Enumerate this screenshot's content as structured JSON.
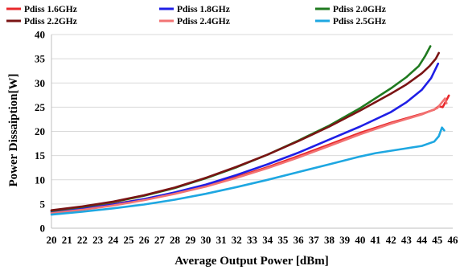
{
  "chart_data": {
    "type": "line",
    "title": "",
    "xlabel": "Average Output Power [dBm]",
    "ylabel": "Power Dissaiption[W]",
    "xlim": [
      20,
      46
    ],
    "ylim": [
      0,
      40
    ],
    "x_ticks": [
      20,
      21,
      22,
      23,
      24,
      25,
      26,
      27,
      28,
      29,
      30,
      31,
      32,
      33,
      34,
      35,
      36,
      37,
      38,
      39,
      40,
      41,
      42,
      43,
      44,
      45,
      46
    ],
    "y_ticks": [
      0,
      5,
      10,
      15,
      20,
      25,
      30,
      35,
      40
    ],
    "grid": "horizontal",
    "legend_position": "top",
    "series": [
      {
        "name": "Pdiss 1.6GHz",
        "color": "#e8282b",
        "points": [
          [
            20,
            3.5
          ],
          [
            22,
            4.2
          ],
          [
            24,
            5.0
          ],
          [
            26,
            6.0
          ],
          [
            28,
            7.3
          ],
          [
            30,
            8.8
          ],
          [
            32,
            10.6
          ],
          [
            34,
            12.6
          ],
          [
            36,
            14.9
          ],
          [
            38,
            17.3
          ],
          [
            40,
            19.7
          ],
          [
            42,
            21.8
          ],
          [
            44,
            23.6
          ],
          [
            44.8,
            24.5
          ],
          [
            45.1,
            25.2
          ],
          [
            45.35,
            25.0
          ],
          [
            45.55,
            26.2
          ],
          [
            45.75,
            27.4
          ]
        ]
      },
      {
        "name": "Pdiss 1.8GHz",
        "color": "#1f1fe6",
        "points": [
          [
            20,
            3.3
          ],
          [
            22,
            4.0
          ],
          [
            24,
            4.9
          ],
          [
            26,
            6.0
          ],
          [
            28,
            7.4
          ],
          [
            30,
            9.0
          ],
          [
            32,
            11.0
          ],
          [
            34,
            13.2
          ],
          [
            36,
            15.6
          ],
          [
            38,
            18.3
          ],
          [
            40,
            21.0
          ],
          [
            42,
            24.0
          ],
          [
            43,
            26.0
          ],
          [
            44,
            28.6
          ],
          [
            44.6,
            31.0
          ],
          [
            44.9,
            33.0
          ],
          [
            45.05,
            34.0
          ]
        ]
      },
      {
        "name": "Pdiss 2.0GHz",
        "color": "#1f7a1f",
        "points": [
          [
            20,
            3.6
          ],
          [
            22,
            4.4
          ],
          [
            24,
            5.4
          ],
          [
            26,
            6.7
          ],
          [
            28,
            8.3
          ],
          [
            30,
            10.3
          ],
          [
            32,
            12.6
          ],
          [
            34,
            15.2
          ],
          [
            36,
            18.1
          ],
          [
            38,
            21.2
          ],
          [
            40,
            24.8
          ],
          [
            42,
            28.9
          ],
          [
            43,
            31.2
          ],
          [
            43.8,
            33.5
          ],
          [
            44.2,
            35.5
          ],
          [
            44.55,
            37.6
          ]
        ]
      },
      {
        "name": "Pdiss 2.2GHz",
        "color": "#7a1414",
        "points": [
          [
            20,
            3.7
          ],
          [
            22,
            4.5
          ],
          [
            24,
            5.5
          ],
          [
            26,
            6.8
          ],
          [
            28,
            8.4
          ],
          [
            30,
            10.4
          ],
          [
            32,
            12.7
          ],
          [
            34,
            15.2
          ],
          [
            36,
            18.0
          ],
          [
            38,
            21.0
          ],
          [
            40,
            24.3
          ],
          [
            42,
            27.8
          ],
          [
            43,
            29.7
          ],
          [
            44,
            32.0
          ],
          [
            44.5,
            33.5
          ],
          [
            44.9,
            35.0
          ],
          [
            45.1,
            36.2
          ]
        ]
      },
      {
        "name": "Pdiss 2.4GHz",
        "color": "#f27373",
        "points": [
          [
            20,
            3.1
          ],
          [
            22,
            3.8
          ],
          [
            24,
            4.7
          ],
          [
            26,
            5.8
          ],
          [
            28,
            7.1
          ],
          [
            30,
            8.6
          ],
          [
            32,
            10.4
          ],
          [
            34,
            12.4
          ],
          [
            36,
            14.6
          ],
          [
            38,
            17.0
          ],
          [
            40,
            19.4
          ],
          [
            42,
            21.6
          ],
          [
            44,
            23.5
          ],
          [
            45,
            24.8
          ],
          [
            45.3,
            26.0
          ],
          [
            45.5,
            26.8
          ],
          [
            45.6,
            25.8
          ]
        ]
      },
      {
        "name": "Pdiss 2.5GHz",
        "color": "#1ea7e1",
        "points": [
          [
            20,
            2.8
          ],
          [
            22,
            3.4
          ],
          [
            24,
            4.1
          ],
          [
            26,
            4.9
          ],
          [
            28,
            5.9
          ],
          [
            30,
            7.1
          ],
          [
            32,
            8.5
          ],
          [
            34,
            10.0
          ],
          [
            36,
            11.6
          ],
          [
            38,
            13.2
          ],
          [
            40,
            14.8
          ],
          [
            41,
            15.5
          ],
          [
            42,
            16.0
          ],
          [
            43,
            16.5
          ],
          [
            44,
            17.0
          ],
          [
            44.8,
            17.9
          ],
          [
            45.1,
            19.0
          ],
          [
            45.3,
            20.8
          ],
          [
            45.45,
            20.2
          ]
        ]
      }
    ]
  }
}
